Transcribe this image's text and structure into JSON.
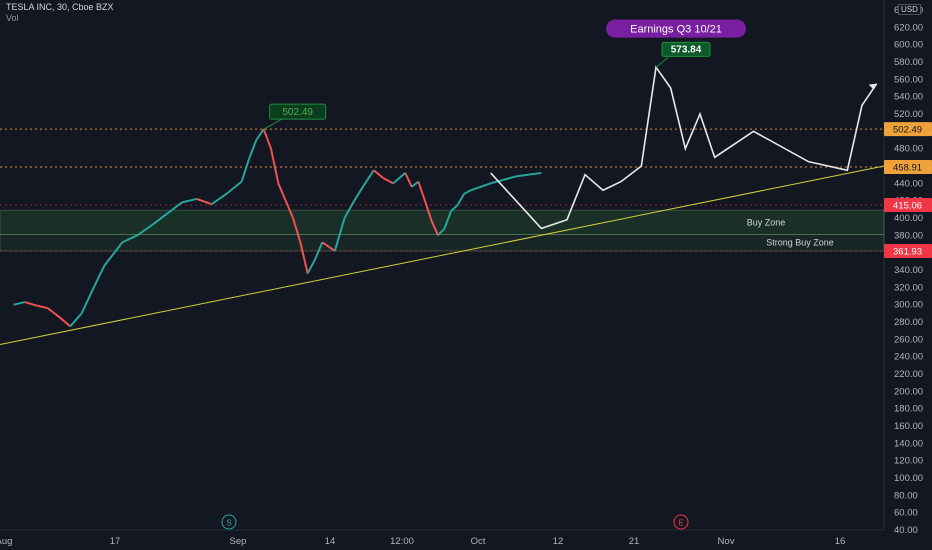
{
  "header": {
    "title": "TESLA INC, 30, Cboe BZX",
    "indicator": "Vol"
  },
  "price_axis": {
    "currency": "USD"
  },
  "chart_data": {
    "type": "candlestick",
    "title": "TESLA INC, 30, Cboe BZX",
    "y_axis": {
      "position": "right",
      "ylim": [
        40,
        640
      ],
      "ticks": [
        40,
        60,
        80,
        100,
        120,
        140,
        160,
        180,
        200,
        220,
        240,
        260,
        280,
        300,
        320,
        340,
        360,
        380,
        400,
        420,
        440,
        460,
        480,
        500,
        520,
        540,
        560,
        580,
        600,
        620,
        640
      ]
    },
    "x_axis": {
      "tick_labels": [
        "Aug",
        "17",
        "Sep",
        "14",
        "12:00",
        "Oct",
        "12",
        "21",
        "Nov",
        "16"
      ]
    },
    "grid": false,
    "price_path": [
      [
        "Aug",
        300
      ],
      [
        "Aug",
        303
      ],
      [
        "Aug",
        299
      ],
      [
        "Aug",
        296
      ],
      [
        "Aug",
        286
      ],
      [
        "Aug",
        275
      ],
      [
        "Aug",
        290
      ],
      [
        "Aug",
        318
      ],
      [
        "Aug",
        345
      ],
      [
        "17",
        372
      ],
      [
        "17",
        380
      ],
      [
        "17",
        392
      ],
      [
        "17",
        405
      ],
      [
        "17",
        418
      ],
      [
        "17",
        422
      ],
      [
        "17",
        416
      ],
      [
        "17",
        428
      ],
      [
        "Sep",
        442
      ],
      [
        "Sep",
        468
      ],
      [
        "Sep",
        490
      ],
      [
        "Sep",
        502.49
      ],
      [
        "Sep",
        480
      ],
      [
        "Sep",
        440
      ],
      [
        "Sep",
        420
      ],
      [
        "Sep",
        400
      ],
      [
        "Sep",
        372
      ],
      [
        "Sep",
        336
      ],
      [
        "Sep",
        352
      ],
      [
        "Sep",
        372
      ],
      [
        "14",
        362
      ],
      [
        "14",
        400
      ],
      [
        "14",
        420
      ],
      [
        "14",
        438
      ],
      [
        "14",
        455
      ],
      [
        "14",
        446
      ],
      [
        "14",
        440
      ],
      [
        "12:00",
        452
      ],
      [
        "12:00",
        436
      ],
      [
        "12:00",
        442
      ],
      [
        "12:00",
        420
      ],
      [
        "12:00",
        397
      ],
      [
        "12:00",
        380
      ],
      [
        "12:00",
        388
      ],
      [
        "12:00",
        408
      ],
      [
        "12:00",
        415
      ],
      [
        "12:00",
        428
      ],
      [
        "12:00",
        432
      ],
      [
        "Oct",
        440
      ],
      [
        "Oct",
        448
      ],
      [
        "Oct",
        452
      ]
    ],
    "series": [
      {
        "type": "hline",
        "value": 502.49
      },
      {
        "type": "hline",
        "value": 458.91
      },
      {
        "type": "hline",
        "value": 415.06
      },
      {
        "type": "hline",
        "value": 361.93
      },
      {
        "type": "zone",
        "label": "Buy Zone",
        "range": [
          381,
          409
        ]
      },
      {
        "type": "zone",
        "label": "Strong Buy Zone",
        "range": [
          361.93,
          381
        ]
      },
      {
        "type": "trendline",
        "from": [
          "Aug",
          254
        ],
        "to": [
          "16",
          460
        ]
      },
      {
        "type": "projection_path",
        "points": [
          [
            "Oct",
            452
          ],
          [
            "Oct",
            420
          ],
          [
            "Oct",
            388
          ],
          [
            "12",
            398
          ],
          [
            "12",
            450
          ],
          [
            "12",
            432
          ],
          [
            "12",
            442
          ],
          [
            "21",
            460
          ],
          [
            "21",
            574
          ],
          [
            "21",
            550
          ],
          [
            "21",
            480
          ],
          [
            "21",
            520
          ],
          [
            "21",
            470
          ],
          [
            "Nov",
            500
          ],
          [
            "Nov",
            465
          ],
          [
            "16",
            455
          ],
          [
            "16",
            530
          ],
          [
            "16",
            555
          ]
        ]
      }
    ],
    "annotations": {
      "callouts": [
        {
          "text": "502.49",
          "at": [
            "Sep",
            502.49
          ]
        },
        {
          "text": "573.84",
          "at": [
            "21",
            573.84
          ]
        },
        {
          "text": "Earnings Q3 10/21",
          "at": [
            "21",
            600
          ]
        }
      ],
      "zone_labels": [
        "Buy Zone",
        "Strong Buy Zone"
      ],
      "price_labels": [
        {
          "text": "502.49",
          "color": "#f0a23a"
        },
        {
          "text": "458.91",
          "color": "#f0a23a"
        },
        {
          "text": "415.06",
          "color": "#f23645"
        },
        {
          "text": "361.93",
          "color": "#f23645"
        }
      ],
      "event_markers": [
        {
          "text": "S",
          "color": "#26a69a"
        },
        {
          "text": "E",
          "color": "#f23645"
        }
      ]
    }
  }
}
